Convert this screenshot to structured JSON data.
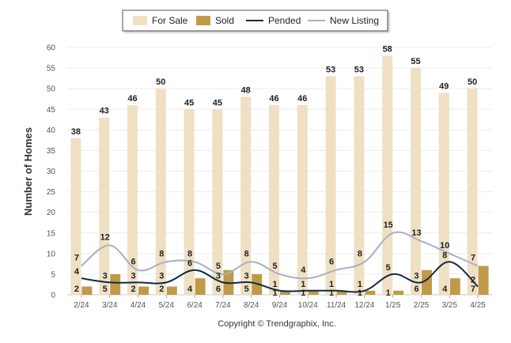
{
  "chart_data": {
    "type": "bar",
    "ylabel": "Number of Homes",
    "xlabel": "",
    "ylim": [
      0,
      60
    ],
    "yticks": [
      0,
      5,
      10,
      15,
      20,
      25,
      30,
      35,
      40,
      45,
      50,
      55,
      60
    ],
    "grid": true,
    "legend_position": "top-center",
    "categories": [
      "2/24",
      "3/24",
      "4/24",
      "5/24",
      "6/24",
      "7/24",
      "8/24",
      "9/24",
      "10/24",
      "11/24",
      "12/24",
      "1/25",
      "2/25",
      "3/25",
      "4/25"
    ],
    "series": [
      {
        "name": "For Sale",
        "kind": "bar",
        "color": "#EFE0C4",
        "values": [
          38,
          43,
          46,
          50,
          45,
          45,
          48,
          46,
          46,
          53,
          53,
          58,
          55,
          49,
          50
        ]
      },
      {
        "name": "Sold",
        "kind": "bar",
        "color": "#C09A48",
        "values": [
          2,
          5,
          2,
          2,
          4,
          6,
          5,
          1,
          1,
          1,
          1,
          1,
          6,
          4,
          7
        ]
      },
      {
        "name": "Pended",
        "kind": "line",
        "color": "#0F2A44",
        "values": [
          4,
          3,
          3,
          3,
          6,
          3,
          3,
          1,
          1,
          1,
          1,
          5,
          3,
          8,
          2
        ]
      },
      {
        "name": "New Listing",
        "kind": "line",
        "color": "#A8AFC4",
        "values": [
          7,
          12,
          6,
          8,
          8,
          5,
          8,
          5,
          4,
          6,
          8,
          15,
          13,
          10,
          7
        ]
      }
    ]
  },
  "copyright": "Copyright © Trendgraphix, Inc."
}
